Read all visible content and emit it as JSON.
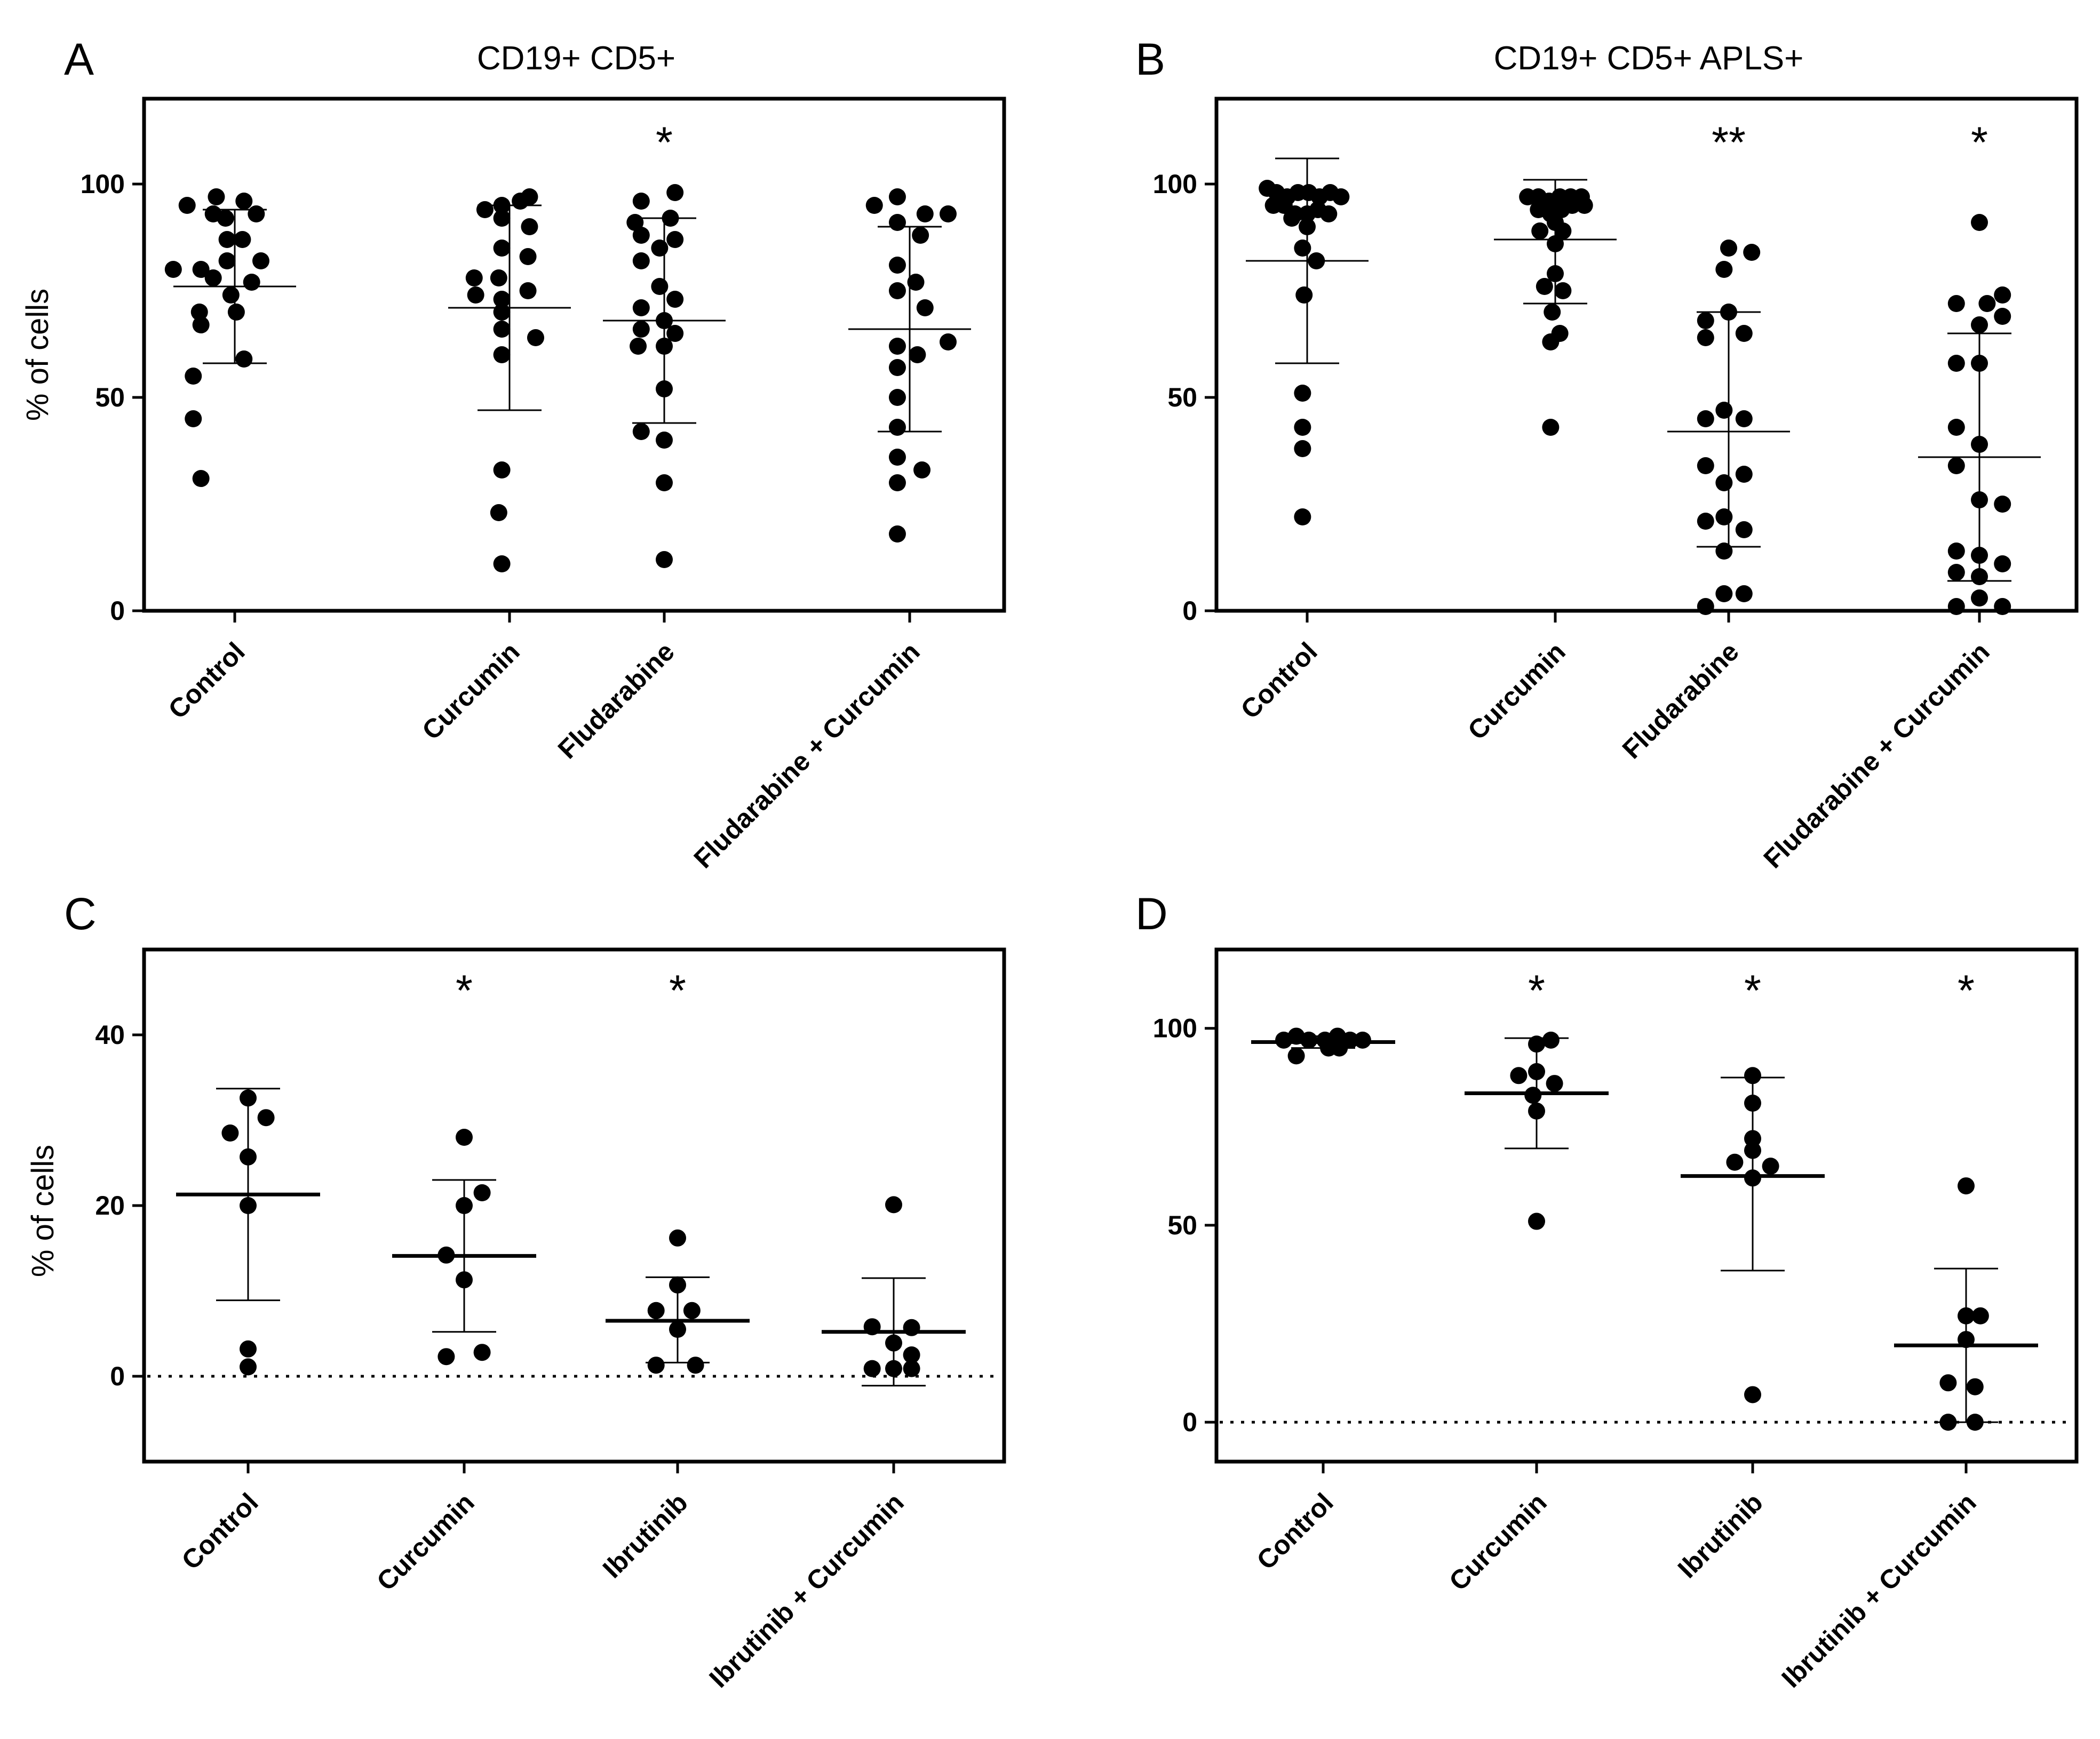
{
  "chart_data": [
    {
      "id": "A",
      "type": "scatter",
      "panel_label": "A",
      "title": "CD19+ CD5+",
      "ylabel": "% of cells",
      "ylim": [
        0,
        120
      ],
      "yticks": [
        0,
        50,
        100
      ],
      "tick_labels": [
        "0",
        "50",
        "100"
      ],
      "categories": [
        "Control",
        "Curcumin",
        "Fludarabine",
        "Fludarabine + Curcumin"
      ],
      "mean_style": "thin",
      "zero_line": false,
      "groups": [
        {
          "mean": 76,
          "sd_low": 58,
          "sd_high": 94,
          "sig": "",
          "points": [
            [
              -0.62,
              95
            ],
            [
              -0.24,
              97
            ],
            [
              0.12,
              96
            ],
            [
              -0.12,
              92
            ],
            [
              0.28,
              93
            ],
            [
              -0.28,
              93
            ],
            [
              -0.1,
              87
            ],
            [
              0.1,
              87
            ],
            [
              0.34,
              82
            ],
            [
              -0.8,
              80
            ],
            [
              -0.44,
              80
            ],
            [
              -0.1,
              82
            ],
            [
              0.22,
              77
            ],
            [
              -0.28,
              78
            ],
            [
              -0.05,
              74
            ],
            [
              -0.46,
              70
            ],
            [
              0.02,
              70
            ],
            [
              -0.44,
              67
            ],
            [
              0.12,
              59
            ],
            [
              -0.54,
              55
            ],
            [
              -0.54,
              45
            ],
            [
              -0.44,
              31
            ]
          ]
        },
        {
          "mean": 71,
          "sd_low": 47,
          "sd_high": 95,
          "sig": "",
          "points": [
            [
              -0.32,
              94
            ],
            [
              0.26,
              97
            ],
            [
              -0.1,
              95
            ],
            [
              0.14,
              96
            ],
            [
              -0.1,
              92
            ],
            [
              0.26,
              90
            ],
            [
              -0.1,
              85
            ],
            [
              0.24,
              83
            ],
            [
              -0.46,
              78
            ],
            [
              -0.14,
              78
            ],
            [
              0.24,
              75
            ],
            [
              -0.44,
              74
            ],
            [
              -0.1,
              73
            ],
            [
              -0.1,
              70
            ],
            [
              -0.1,
              66
            ],
            [
              0.34,
              64
            ],
            [
              -0.1,
              60
            ],
            [
              -0.1,
              33
            ],
            [
              -0.14,
              23
            ],
            [
              -0.1,
              11
            ]
          ]
        },
        {
          "mean": 68,
          "sd_low": 44,
          "sd_high": 92,
          "sig": "*",
          "points": [
            [
              -0.3,
              96
            ],
            [
              0.14,
              98
            ],
            [
              -0.38,
              91
            ],
            [
              0.08,
              92
            ],
            [
              -0.3,
              88
            ],
            [
              0.14,
              87
            ],
            [
              -0.06,
              85
            ],
            [
              -0.3,
              82
            ],
            [
              -0.06,
              76
            ],
            [
              0.14,
              73
            ],
            [
              -0.3,
              71
            ],
            [
              0.0,
              68
            ],
            [
              -0.3,
              66
            ],
            [
              0.14,
              65
            ],
            [
              -0.34,
              62
            ],
            [
              0.0,
              62
            ],
            [
              0.0,
              52
            ],
            [
              -0.3,
              42
            ],
            [
              0.0,
              40
            ],
            [
              0.0,
              30
            ],
            [
              0.0,
              12
            ]
          ]
        },
        {
          "mean": 66,
          "sd_low": 42,
          "sd_high": 90,
          "sig": "",
          "points": [
            [
              -0.46,
              95
            ],
            [
              -0.16,
              97
            ],
            [
              0.2,
              93
            ],
            [
              0.5,
              93
            ],
            [
              -0.16,
              91
            ],
            [
              0.14,
              88
            ],
            [
              -0.16,
              81
            ],
            [
              0.08,
              77
            ],
            [
              -0.16,
              75
            ],
            [
              0.2,
              71
            ],
            [
              0.5,
              63
            ],
            [
              -0.16,
              62
            ],
            [
              0.1,
              60
            ],
            [
              -0.16,
              57
            ],
            [
              -0.16,
              50
            ],
            [
              -0.16,
              43
            ],
            [
              -0.16,
              36
            ],
            [
              0.16,
              33
            ],
            [
              -0.16,
              30
            ],
            [
              -0.16,
              18
            ]
          ]
        }
      ]
    },
    {
      "id": "B",
      "type": "scatter",
      "panel_label": "B",
      "title": "CD19+ CD5+ APLS+",
      "ylabel": "",
      "ylim": [
        0,
        120
      ],
      "yticks": [
        0,
        50,
        100
      ],
      "tick_labels": [
        "0",
        "50",
        "100"
      ],
      "categories": [
        "Control",
        "Curcumin",
        "Fludarabine",
        "Fludarabine + Curcumin"
      ],
      "mean_style": "thin",
      "zero_line": false,
      "groups": [
        {
          "mean": 82,
          "sd_low": 58,
          "sd_high": 106,
          "sig": "",
          "points": [
            [
              -0.52,
              99
            ],
            [
              -0.4,
              98
            ],
            [
              -0.26,
              97
            ],
            [
              -0.12,
              98
            ],
            [
              0.02,
              98
            ],
            [
              0.16,
              97
            ],
            [
              0.3,
              98
            ],
            [
              0.44,
              97
            ],
            [
              -0.44,
              95
            ],
            [
              -0.3,
              95
            ],
            [
              -0.16,
              93
            ],
            [
              0.0,
              93
            ],
            [
              0.14,
              94
            ],
            [
              0.28,
              93
            ],
            [
              -0.2,
              92
            ],
            [
              0.0,
              90
            ],
            [
              -0.06,
              85
            ],
            [
              0.12,
              82
            ],
            [
              -0.04,
              74
            ],
            [
              -0.06,
              51
            ],
            [
              -0.06,
              43
            ],
            [
              -0.06,
              38
            ],
            [
              -0.06,
              22
            ]
          ]
        },
        {
          "mean": 87,
          "sd_low": 72,
          "sd_high": 101,
          "sig": "",
          "points": [
            [
              -0.36,
              97
            ],
            [
              -0.22,
              97
            ],
            [
              -0.08,
              96
            ],
            [
              0.06,
              97
            ],
            [
              0.2,
              97
            ],
            [
              0.34,
              97
            ],
            [
              -0.22,
              94
            ],
            [
              -0.06,
              93
            ],
            [
              0.08,
              94
            ],
            [
              0.22,
              95
            ],
            [
              0.38,
              95
            ],
            [
              0.0,
              91
            ],
            [
              -0.2,
              89
            ],
            [
              0.1,
              89
            ],
            [
              0.0,
              86
            ],
            [
              0.0,
              79
            ],
            [
              -0.14,
              76
            ],
            [
              0.1,
              75
            ],
            [
              -0.04,
              70
            ],
            [
              -0.06,
              63
            ],
            [
              0.06,
              65
            ],
            [
              -0.06,
              43
            ]
          ]
        },
        {
          "mean": 42,
          "sd_low": 15,
          "sd_high": 70,
          "sig": "**",
          "points": [
            [
              0.0,
              85
            ],
            [
              0.3,
              84
            ],
            [
              -0.06,
              80
            ],
            [
              0.0,
              70
            ],
            [
              -0.3,
              68
            ],
            [
              -0.3,
              64
            ],
            [
              0.2,
              65
            ],
            [
              -0.3,
              45
            ],
            [
              -0.06,
              47
            ],
            [
              0.2,
              45
            ],
            [
              -0.3,
              34
            ],
            [
              0.2,
              32
            ],
            [
              -0.06,
              30
            ],
            [
              -0.06,
              22
            ],
            [
              -0.3,
              21
            ],
            [
              0.2,
              19
            ],
            [
              -0.06,
              14
            ],
            [
              -0.3,
              1
            ],
            [
              -0.06,
              4
            ],
            [
              0.2,
              4
            ]
          ]
        },
        {
          "mean": 36,
          "sd_low": 7,
          "sd_high": 65,
          "sig": "*",
          "points": [
            [
              0.0,
              91
            ],
            [
              -0.3,
              72
            ],
            [
              0.1,
              72
            ],
            [
              0.3,
              74
            ],
            [
              0.3,
              69
            ],
            [
              0.0,
              67
            ],
            [
              -0.3,
              58
            ],
            [
              0.0,
              58
            ],
            [
              -0.3,
              43
            ],
            [
              0.0,
              39
            ],
            [
              -0.3,
              34
            ],
            [
              0.0,
              26
            ],
            [
              0.3,
              25
            ],
            [
              -0.3,
              14
            ],
            [
              0.0,
              13
            ],
            [
              0.3,
              11
            ],
            [
              -0.3,
              9
            ],
            [
              0.0,
              8
            ],
            [
              0.0,
              3
            ],
            [
              -0.3,
              1
            ],
            [
              0.3,
              1
            ]
          ]
        }
      ]
    },
    {
      "id": "C",
      "type": "scatter",
      "panel_label": "C",
      "title": "",
      "ylabel": "% of cells",
      "ylim": [
        -10,
        50
      ],
      "yticks": [
        0,
        20,
        40
      ],
      "tick_labels": [
        "0",
        "20",
        "40"
      ],
      "categories": [
        "Control",
        "Curcumin",
        "Ibrutinib",
        "Ibrutinib + Curcumin"
      ],
      "mean_style": "thick",
      "zero_line": true,
      "groups": [
        {
          "mean": 21.3,
          "sd_low": 8.9,
          "sd_high": 33.7,
          "sig": "",
          "points": [
            [
              -0.2,
              28.5
            ],
            [
              0.0,
              32.6
            ],
            [
              0.2,
              30.3
            ],
            [
              0.0,
              25.7
            ],
            [
              0.0,
              20.0
            ],
            [
              0.0,
              3.2
            ],
            [
              0.0,
              1.1
            ]
          ]
        },
        {
          "mean": 14.1,
          "sd_low": 5.2,
          "sd_high": 23.0,
          "sig": "*",
          "points": [
            [
              0.0,
              28.0
            ],
            [
              0.2,
              21.5
            ],
            [
              0.0,
              20.0
            ],
            [
              -0.2,
              14.2
            ],
            [
              0.0,
              11.3
            ],
            [
              -0.2,
              2.3
            ],
            [
              0.2,
              2.8
            ]
          ]
        },
        {
          "mean": 6.5,
          "sd_low": 1.6,
          "sd_high": 11.6,
          "sig": "*",
          "points": [
            [
              0.0,
              16.2
            ],
            [
              0.0,
              10.7
            ],
            [
              -0.24,
              7.7
            ],
            [
              0.16,
              7.7
            ],
            [
              0.0,
              5.5
            ],
            [
              -0.24,
              1.3
            ],
            [
              0.2,
              1.3
            ]
          ]
        },
        {
          "mean": 5.2,
          "sd_low": -1.1,
          "sd_high": 11.5,
          "sig": "",
          "points": [
            [
              0.0,
              20.1
            ],
            [
              -0.24,
              5.8
            ],
            [
              0.2,
              5.7
            ],
            [
              0.0,
              3.9
            ],
            [
              0.2,
              2.5
            ],
            [
              -0.24,
              0.9
            ],
            [
              0.0,
              0.9
            ],
            [
              0.2,
              0.9
            ]
          ]
        }
      ]
    },
    {
      "id": "D",
      "type": "scatter",
      "panel_label": "D",
      "title": "",
      "ylabel": "",
      "ylim": [
        -10,
        120
      ],
      "yticks": [
        0,
        50,
        100
      ],
      "tick_labels": [
        "0",
        "50",
        "100"
      ],
      "categories": [
        "Control",
        "Curcumin",
        "Ibrutinib",
        "Ibrutinib + Curcumin"
      ],
      "mean_style": "thick",
      "zero_line": true,
      "groups": [
        {
          "mean": 96.5,
          "sd_low": 95.0,
          "sd_high": 98.0,
          "sig": "",
          "points": [
            [
              -0.44,
              97
            ],
            [
              -0.3,
              98
            ],
            [
              -0.16,
              97
            ],
            [
              0.02,
              97
            ],
            [
              0.16,
              98
            ],
            [
              0.3,
              97
            ],
            [
              0.44,
              97
            ],
            [
              -0.3,
              93
            ],
            [
              0.06,
              95
            ],
            [
              0.18,
              95
            ]
          ]
        },
        {
          "mean": 83.5,
          "sd_low": 69.5,
          "sd_high": 97.5,
          "sig": "*",
          "points": [
            [
              0.0,
              96
            ],
            [
              0.16,
              97
            ],
            [
              -0.2,
              88
            ],
            [
              0.0,
              89
            ],
            [
              0.2,
              86
            ],
            [
              -0.04,
              83
            ],
            [
              0.0,
              79
            ],
            [
              0.0,
              51
            ]
          ]
        },
        {
          "mean": 62.5,
          "sd_low": 38.5,
          "sd_high": 87.5,
          "sig": "*",
          "points": [
            [
              0.0,
              88
            ],
            [
              0.0,
              81
            ],
            [
              0.0,
              72
            ],
            [
              -0.2,
              66
            ],
            [
              0.2,
              65
            ],
            [
              0.0,
              69
            ],
            [
              0.0,
              62
            ],
            [
              0.0,
              7
            ]
          ]
        },
        {
          "mean": 19.5,
          "sd_low": 0,
          "sd_high": 39,
          "sig": "*",
          "points": [
            [
              0.0,
              60
            ],
            [
              0.0,
              27
            ],
            [
              0.16,
              27
            ],
            [
              0.0,
              21
            ],
            [
              -0.2,
              10
            ],
            [
              0.1,
              9
            ],
            [
              -0.2,
              0
            ],
            [
              0.1,
              0
            ]
          ]
        }
      ]
    }
  ]
}
